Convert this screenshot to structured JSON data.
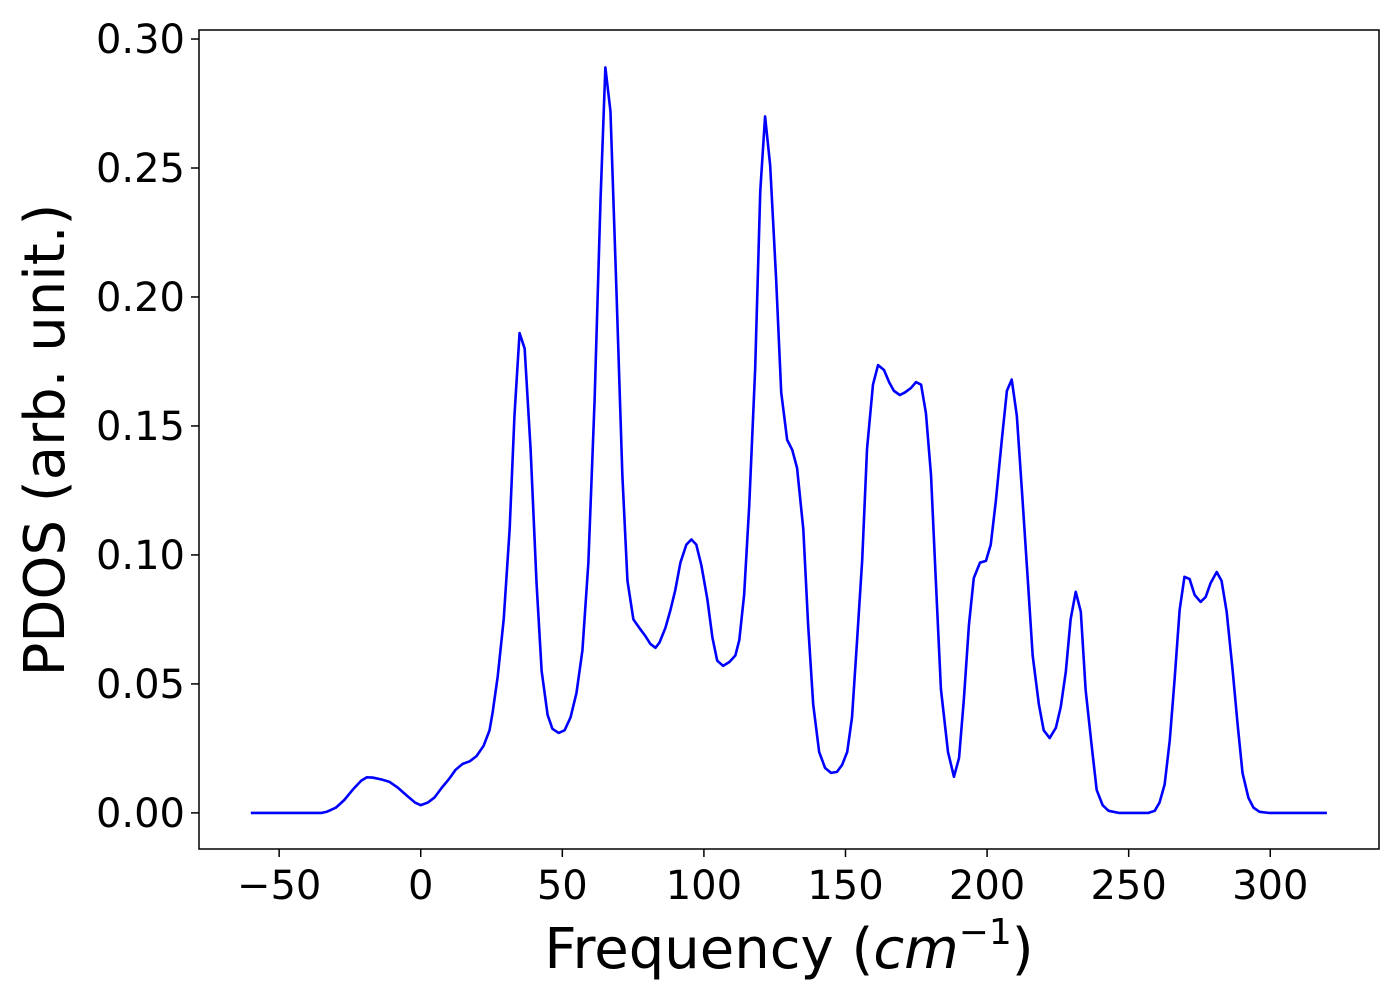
{
  "chart_data": {
    "type": "line",
    "xlabel": [
      "Frequency (",
      "cm",
      "−1",
      ")"
    ],
    "ylabel": "PDOS (arb. unit.)",
    "color": "#0000ff",
    "xlim": [
      -78.3,
      338.4
    ],
    "ylim": [
      -0.014,
      0.3035
    ],
    "xticks": [
      {
        "value": -50,
        "label": "−50"
      },
      0,
      50,
      100,
      150,
      200,
      250,
      300
    ],
    "yticks": [
      {
        "value": 0,
        "label": "0.00"
      },
      0.05,
      {
        "value": 0.1,
        "label": "0.10"
      },
      0.15,
      {
        "value": 0.2,
        "label": "0.20"
      },
      0.25,
      {
        "value": 0.3,
        "label": "0.30"
      }
    ],
    "x": [
      -60,
      -35,
      -33,
      -30,
      -27,
      -24,
      -21,
      -19,
      -17,
      -14,
      -11,
      -8,
      -5,
      -2,
      0,
      2.5,
      4.9,
      7.4,
      9.9,
      12.3,
      14.8,
      17.3,
      19.7,
      22.2,
      24.3,
      25.4,
      27.2,
      29.3,
      31.4,
      33.1,
      34.9,
      36.7,
      38.8,
      40.9,
      42.7,
      44.8,
      46.5,
      48.7,
      50.8,
      52.9,
      55,
      57.1,
      59.2,
      61.4,
      63.5,
      65.2,
      67,
      69.1,
      71.2,
      73,
      75.1,
      77.2,
      79.3,
      81.1,
      82.9,
      84.3,
      86.4,
      88.2,
      89.9,
      91.7,
      93.8,
      95.6,
      97.3,
      99.1,
      101.2,
      103,
      104.7,
      106.8,
      109,
      111.1,
      112.5,
      114.2,
      116,
      118.1,
      119.9,
      121.6,
      123.4,
      125.5,
      127.3,
      129.4,
      131.2,
      132.9,
      135.1,
      136.8,
      138.6,
      140.7,
      142.8,
      144.9,
      147,
      148.8,
      150.6,
      152.3,
      154.1,
      155.9,
      157.6,
      159.7,
      161.5,
      163.6,
      165.4,
      167.1,
      169.2,
      171,
      173.1,
      174.9,
      176.7,
      178.4,
      180.2,
      181.9,
      183.7,
      186.2,
      188.3,
      190.1,
      191.8,
      193.6,
      195.3,
      197.5,
      199.6,
      201.3,
      203.1,
      205.2,
      207,
      208.7,
      210.5,
      212.3,
      214.4,
      216.1,
      218.3,
      220,
      222.1,
      224.3,
      226,
      227.8,
      229.5,
      231.3,
      233.1,
      234.8,
      236.9,
      238.7,
      240.8,
      242.9,
      246.5,
      257,
      259.2,
      260.9,
      262.7,
      264.5,
      266.2,
      268,
      269.7,
      271.5,
      273.3,
      275.4,
      277.2,
      278.9,
      281.1,
      282.8,
      284.6,
      286.7,
      288.5,
      290.2,
      292.3,
      294.1,
      296.2,
      299.4,
      320
    ],
    "values": [
      0,
      0,
      0.0005,
      0.002,
      0.005,
      0.009,
      0.0125,
      0.0138,
      0.0137,
      0.013,
      0.012,
      0.0097,
      0.0068,
      0.004,
      0.003,
      0.004,
      0.006,
      0.0097,
      0.013,
      0.0167,
      0.019,
      0.02,
      0.022,
      0.026,
      0.032,
      0.039,
      0.053,
      0.075,
      0.11,
      0.154,
      0.186,
      0.18,
      0.141,
      0.089,
      0.055,
      0.038,
      0.0326,
      0.031,
      0.032,
      0.037,
      0.0465,
      0.063,
      0.097,
      0.16,
      0.238,
      0.289,
      0.272,
      0.203,
      0.131,
      0.09,
      0.075,
      0.0717,
      0.0686,
      0.0655,
      0.064,
      0.066,
      0.0717,
      0.0787,
      0.0864,
      0.097,
      0.104,
      0.106,
      0.104,
      0.096,
      0.083,
      0.068,
      0.059,
      0.057,
      0.0585,
      0.061,
      0.067,
      0.0845,
      0.119,
      0.172,
      0.241,
      0.27,
      0.251,
      0.207,
      0.163,
      0.1446,
      0.1407,
      0.1337,
      0.11,
      0.073,
      0.042,
      0.0236,
      0.0174,
      0.0155,
      0.0159,
      0.0186,
      0.0236,
      0.037,
      0.067,
      0.098,
      0.141,
      0.166,
      0.1736,
      0.1717,
      0.167,
      0.1636,
      0.162,
      0.163,
      0.1647,
      0.167,
      0.166,
      0.155,
      0.131,
      0.09,
      0.048,
      0.0236,
      0.014,
      0.0213,
      0.044,
      0.073,
      0.091,
      0.097,
      0.0977,
      0.104,
      0.121,
      0.1446,
      0.1636,
      0.168,
      0.154,
      0.125,
      0.09,
      0.061,
      0.042,
      0.032,
      0.029,
      0.033,
      0.041,
      0.0547,
      0.075,
      0.0857,
      0.078,
      0.0477,
      0.0264,
      0.0089,
      0.003,
      0.0008,
      0,
      0,
      0.0008,
      0.004,
      0.011,
      0.028,
      0.0515,
      0.0787,
      0.0915,
      0.0907,
      0.0845,
      0.0818,
      0.0837,
      0.089,
      0.0934,
      0.09,
      0.078,
      0.0554,
      0.034,
      0.0155,
      0.0058,
      0.002,
      0.0004,
      0,
      0
    ]
  }
}
